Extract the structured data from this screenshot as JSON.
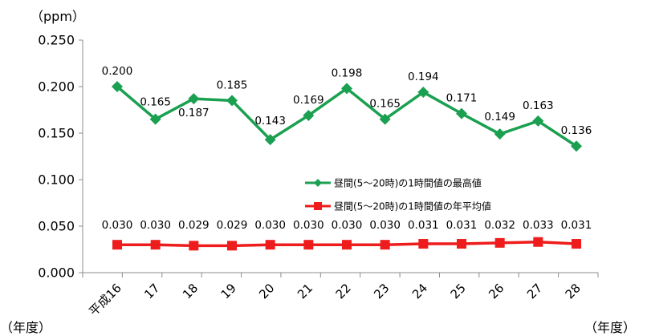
{
  "chart_data": {
    "type": "line",
    "y_unit": "（ppm）",
    "x_unit_left": "（年度）",
    "x_unit_right": "（年度）",
    "categories": [
      "平成16",
      "17",
      "18",
      "19",
      "20",
      "21",
      "22",
      "23",
      "24",
      "25",
      "26",
      "27",
      "28"
    ],
    "ylim": [
      0,
      0.25
    ],
    "yticks": [
      "0.000",
      "0.050",
      "0.100",
      "0.150",
      "0.200",
      "0.250"
    ],
    "grid": false,
    "legend_position": "inside-right",
    "series": [
      {
        "name": "昼間(5～20時)の1時間値の最高値",
        "color": "#1aa050",
        "marker": "diamond",
        "values": [
          0.2,
          0.165,
          0.187,
          0.185,
          0.143,
          0.169,
          0.198,
          0.165,
          0.194,
          0.171,
          0.149,
          0.163,
          0.136
        ],
        "labels": [
          "0.200",
          "0.165",
          "0.187",
          "0.185",
          "0.143",
          "0.169",
          "0.198",
          "0.165",
          "0.194",
          "0.171",
          "0.149",
          "0.163",
          "0.136"
        ]
      },
      {
        "name": "昼間(5～20時)の1時間値の年平均値",
        "color": "#ee1c1c",
        "marker": "square",
        "values": [
          0.03,
          0.03,
          0.029,
          0.029,
          0.03,
          0.03,
          0.03,
          0.03,
          0.031,
          0.031,
          0.032,
          0.033,
          0.031
        ],
        "labels": [
          "0.030",
          "0.030",
          "0.029",
          "0.029",
          "0.030",
          "0.030",
          "0.030",
          "0.030",
          "0.031",
          "0.031",
          "0.032",
          "0.033",
          "0.031"
        ]
      }
    ]
  }
}
